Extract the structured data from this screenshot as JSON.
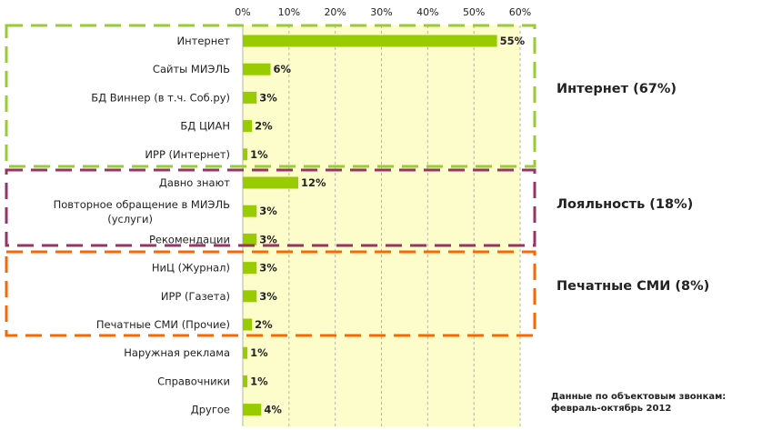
{
  "chart_data": {
    "type": "bar",
    "orientation": "horizontal",
    "categories": [
      "Интернет",
      "Сайты МИЭЛЬ",
      "БД Виннер (в т.ч. Соб.ру)",
      "БД ЦИАН",
      "ИРР (Интернет)",
      "Давно знают",
      "Повторное обращение в МИЭЛЬ (услуги)",
      "Рекомендации",
      "НиЦ (Журнал)",
      "ИРР (Газета)",
      "Печатные СМИ (Прочие)",
      "Наружная реклама",
      "Справочники",
      "Другое"
    ],
    "values": [
      55,
      6,
      3,
      2,
      1,
      12,
      3,
      3,
      3,
      3,
      2,
      1,
      1,
      4
    ],
    "value_labels": [
      "55%",
      "6%",
      "3%",
      "2%",
      "1%",
      "12%",
      "3%",
      "3%",
      "3%",
      "3%",
      "2%",
      "1%",
      "1%",
      "4%"
    ],
    "xlim": [
      0,
      60
    ],
    "x_ticks": [
      "0%",
      "10%",
      "20%",
      "30%",
      "40%",
      "50%",
      "60%"
    ],
    "axis_position": "top",
    "grid": true,
    "bar_color": "#99cc00",
    "plot_background": "#fdfdcc",
    "groups": [
      {
        "label": "Интернет (67%)",
        "from": 0,
        "to": 4,
        "color": "#99cc33"
      },
      {
        "label": "Лояльность (18%)",
        "from": 5,
        "to": 7,
        "color": "#993366"
      },
      {
        "label": "Печатные СМИ (8%)",
        "from": 8,
        "to": 10,
        "color": "#ff6600"
      }
    ],
    "footnote": "Данные по объектовым звонкам: февраль-октябрь 2012"
  }
}
